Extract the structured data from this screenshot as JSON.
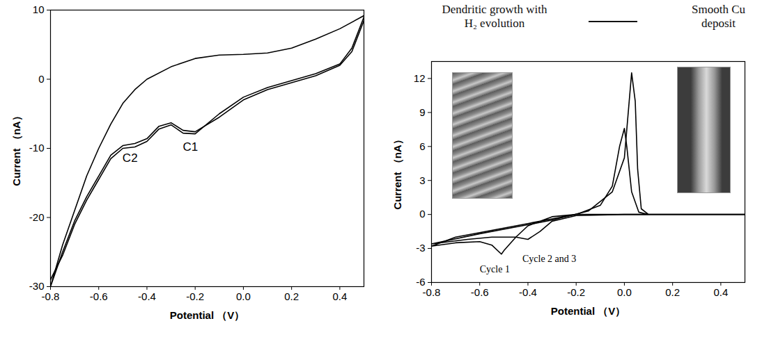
{
  "chart_data": [
    {
      "type": "line",
      "x_label": "Potential （V）",
      "y_label": "Current （nA）",
      "xlim": [
        -0.8,
        0.5
      ],
      "ylim": [
        -30,
        10
      ],
      "xticks": [
        -0.8,
        -0.6,
        -0.4,
        -0.2,
        {
          "value": 0,
          "label": "0.0"
        },
        0.2,
        0.4
      ],
      "yticks": [
        -30,
        -20,
        -10,
        0,
        10
      ],
      "series": [
        {
          "color": "#000000",
          "x": [
            0.5,
            0.45,
            0.4,
            0.3,
            0.2,
            0.1,
            0.0,
            -0.1,
            -0.2,
            -0.25,
            -0.3,
            -0.35,
            -0.4,
            -0.45,
            -0.5,
            -0.55,
            -0.6,
            -0.65,
            -0.7,
            -0.75,
            -0.8,
            -0.75,
            -0.7,
            -0.65,
            -0.6,
            -0.55,
            -0.5,
            -0.45,
            -0.4,
            -0.3,
            -0.2,
            -0.1,
            0.0,
            0.1,
            0.2,
            0.3,
            0.4,
            0.5
          ],
          "values": [
            8.5,
            4.0,
            2.0,
            0.5,
            -0.5,
            -1.5,
            -3.0,
            -5.5,
            -7.6,
            -7.4,
            -6.3,
            -6.8,
            -8.6,
            -9.3,
            -9.6,
            -11.0,
            -14.0,
            -17.0,
            -20.5,
            -25.0,
            -30.0,
            -24.0,
            -19.0,
            -14.0,
            -10.0,
            -6.5,
            -3.5,
            -1.5,
            0.0,
            1.8,
            3.0,
            3.5,
            3.6,
            3.8,
            4.5,
            5.8,
            7.3,
            9.2
          ]
        },
        {
          "color": "#000000",
          "x": [
            0.5,
            0.45,
            0.4,
            0.3,
            0.2,
            0.1,
            0.0,
            -0.1,
            -0.2,
            -0.25,
            -0.3,
            -0.35,
            -0.4,
            -0.45,
            -0.5,
            -0.55,
            -0.6,
            -0.65,
            -0.7,
            -0.75,
            -0.8
          ],
          "values": [
            9.0,
            4.5,
            2.2,
            0.8,
            -0.2,
            -1.2,
            -2.6,
            -5.0,
            -7.9,
            -7.8,
            -6.6,
            -7.2,
            -9.0,
            -9.8,
            -10.0,
            -11.5,
            -14.5,
            -17.5,
            -21.0,
            -25.5,
            -29.0
          ]
        }
      ],
      "annotations": [
        {
          "text": "C1",
          "x": -0.22,
          "y": -7.8
        },
        {
          "text": "C2",
          "x": -0.47,
          "y": -9.4
        }
      ]
    },
    {
      "type": "line",
      "x_label": "Potential （V）",
      "y_label": "Current （nA）",
      "xlim": [
        -0.8,
        0.5
      ],
      "ylim": [
        -6,
        13.5
      ],
      "xticks": [
        -0.8,
        -0.6,
        -0.4,
        -0.2,
        {
          "value": 0,
          "label": "0.0"
        },
        0.2,
        0.4
      ],
      "yticks": [
        -6,
        -3,
        0,
        3,
        6,
        9,
        12
      ],
      "captions": [
        "Dendritic growth with H₂ evolution",
        "Smooth Cu deposit"
      ],
      "series": [
        {
          "color": "#000000",
          "x": [
            0.5,
            0.0,
            -0.2,
            -0.3,
            -0.4,
            -0.45,
            -0.5,
            -0.51,
            -0.55,
            -0.6,
            -0.7,
            -0.8,
            -0.7,
            -0.6,
            -0.4,
            -0.2,
            -0.1,
            -0.05,
            -0.02,
            0.0,
            0.01,
            0.03,
            0.06,
            0.1,
            0.5
          ],
          "values": [
            0.0,
            0.0,
            0.0,
            -0.2,
            -1.0,
            -2.0,
            -3.2,
            -3.5,
            -2.7,
            -2.4,
            -2.5,
            -2.8,
            -2.0,
            -1.6,
            -0.8,
            0.0,
            0.8,
            2.5,
            6.0,
            7.6,
            6.0,
            2.0,
            0.2,
            0.0,
            0.0
          ]
        },
        {
          "color": "#000000",
          "x": [
            0.5,
            0.0,
            -0.2,
            -0.3,
            -0.35,
            -0.4,
            -0.45,
            -0.55,
            -0.65,
            -0.8,
            -0.6,
            -0.3,
            -0.15,
            -0.05,
            0.0,
            0.02,
            0.03,
            0.045,
            0.055,
            0.07,
            0.1,
            0.5
          ],
          "values": [
            0.0,
            0.0,
            -0.1,
            -0.6,
            -1.5,
            -2.2,
            -2.0,
            -2.0,
            -2.2,
            -2.6,
            -1.7,
            -0.5,
            0.3,
            2.0,
            5.0,
            10.0,
            12.5,
            10.0,
            4.0,
            0.5,
            0.0,
            0.0
          ]
        }
      ],
      "annotations": [
        {
          "text": "Cycle 1",
          "x": -0.51,
          "y": -3.5
        },
        {
          "text": "Cycle 2 and 3",
          "x": -0.4,
          "y": -2.2
        }
      ]
    }
  ]
}
